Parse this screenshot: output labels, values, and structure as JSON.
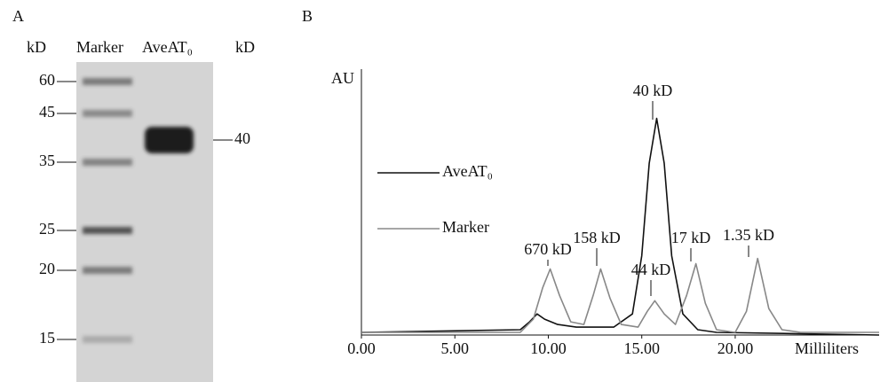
{
  "gel": {
    "panel_label": "A",
    "left_unit": "kD",
    "lane_1": "Marker",
    "lane_2": "AveAT₀",
    "right_unit": "kD",
    "marker_sizes": [
      60,
      45,
      35,
      25,
      20,
      15
    ],
    "band_size": 40
  },
  "chart_data": {
    "type": "line",
    "panel_label": "B",
    "y_label": "AU",
    "x_label": "Milliliters",
    "xlim": [
      0,
      27.7
    ],
    "ylim": [
      0,
      100
    ],
    "xticks": [
      {
        "value": 0,
        "label": "0.00"
      },
      {
        "value": 5,
        "label": "5.00"
      },
      {
        "value": 10,
        "label": "10.00"
      },
      {
        "value": 15,
        "label": "15.00"
      },
      {
        "value": 20,
        "label": "20.00"
      }
    ],
    "series": [
      {
        "name": "AveAT₀",
        "color": "#111111",
        "x": [
          0,
          8.5,
          9.0,
          9.4,
          9.8,
          10.5,
          11.5,
          13.5,
          14.5,
          15.0,
          15.4,
          15.8,
          16.2,
          16.6,
          17.2,
          18.0,
          19.0,
          27.7
        ],
        "values": [
          1,
          2,
          5,
          8,
          6,
          4,
          3,
          3,
          8,
          30,
          65,
          82,
          65,
          30,
          8,
          2,
          1,
          0
        ]
      },
      {
        "name": "Marker",
        "color": "#888888",
        "x": [
          0,
          8.5,
          9.2,
          9.7,
          10.1,
          10.6,
          11.2,
          11.9,
          12.4,
          12.8,
          13.3,
          13.9,
          14.8,
          15.3,
          15.7,
          16.2,
          16.8,
          17.4,
          17.9,
          18.4,
          19.0,
          20.0,
          20.6,
          21.2,
          21.8,
          22.5,
          23.5,
          27.7
        ],
        "values": [
          1,
          1,
          6,
          18,
          25,
          15,
          5,
          4,
          15,
          25,
          14,
          4,
          3,
          9,
          13,
          8,
          4,
          15,
          27,
          12,
          2,
          1,
          9,
          29,
          10,
          2,
          1,
          1
        ]
      }
    ],
    "annotations": [
      "40 kD",
      "670 kD",
      "158 kD",
      "44 kD",
      "17 kD",
      "1.35 kD"
    ]
  }
}
